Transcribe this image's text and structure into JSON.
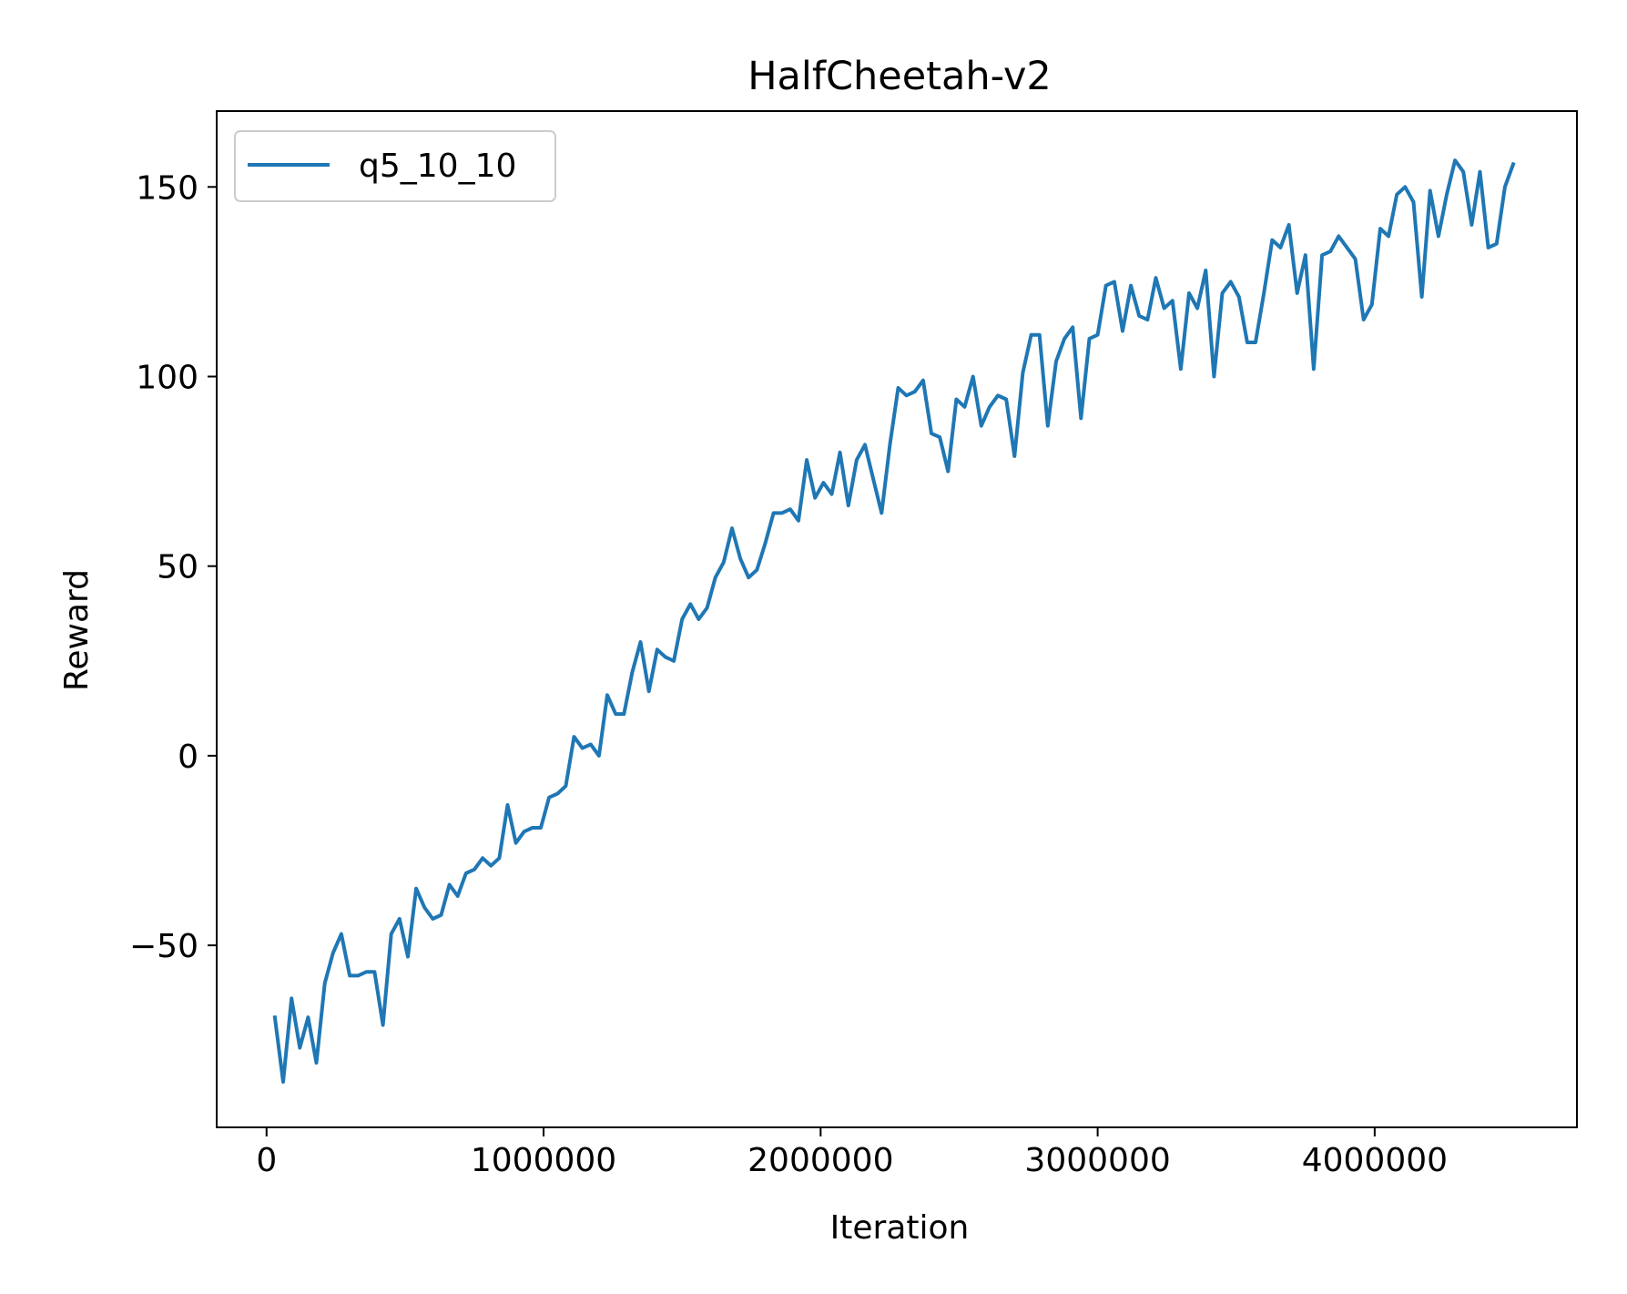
{
  "chart_data": {
    "type": "line",
    "title": "HalfCheetah-v2",
    "xlabel": "Iteration",
    "ylabel": "Reward",
    "xlim": [
      -180000,
      4730000
    ],
    "ylim": [
      -98,
      170
    ],
    "xticks": [
      0,
      1000000,
      2000000,
      3000000,
      4000000
    ],
    "xtick_labels": [
      "0",
      "1000000",
      "2000000",
      "3000000",
      "4000000"
    ],
    "yticks": [
      -50,
      0,
      50,
      100,
      150
    ],
    "ytick_labels": [
      "−50",
      "0",
      "50",
      "100",
      "150"
    ],
    "grid": false,
    "legend_position": "top-left",
    "series": [
      {
        "name": "q5_10_10",
        "color": "#1f77b4",
        "x": [
          30000,
          60000,
          90000,
          120000,
          150000,
          180000,
          210000,
          240000,
          270000,
          300000,
          330000,
          360000,
          390000,
          420000,
          450000,
          480000,
          510000,
          540000,
          570000,
          600000,
          630000,
          660000,
          690000,
          720000,
          750000,
          780000,
          810000,
          840000,
          870000,
          900000,
          930000,
          960000,
          990000,
          1020000,
          1050000,
          1080000,
          1110000,
          1140000,
          1170000,
          1200000,
          1230000,
          1260000,
          1290000,
          1320000,
          1350000,
          1380000,
          1410000,
          1440000,
          1470000,
          1500000,
          1530000,
          1560000,
          1590000,
          1620000,
          1650000,
          1680000,
          1710000,
          1740000,
          1770000,
          1800000,
          1830000,
          1860000,
          1890000,
          1920000,
          1950000,
          1980000,
          2010000,
          2040000,
          2070000,
          2100000,
          2130000,
          2160000,
          2190000,
          2220000,
          2250000,
          2280000,
          2310000,
          2340000,
          2370000,
          2400000,
          2430000,
          2460000,
          2490000,
          2520000,
          2550000,
          2580000,
          2610000,
          2640000,
          2670000,
          2700000,
          2730000,
          2760000,
          2790000,
          2820000,
          2850000,
          2880000,
          2910000,
          2940000,
          2970000,
          3000000,
          3030000,
          3060000,
          3090000,
          3120000,
          3150000,
          3180000,
          3210000,
          3240000,
          3270000,
          3300000,
          3330000,
          3360000,
          3390000,
          3420000,
          3450000,
          3480000,
          3510000,
          3540000,
          3570000,
          3600000,
          3630000,
          3660000,
          3690000,
          3720000,
          3750000,
          3780000,
          3810000,
          3840000,
          3870000,
          3900000,
          3930000,
          3960000,
          3990000,
          4020000,
          4050000,
          4080000,
          4110000,
          4140000,
          4170000,
          4200000,
          4230000,
          4260000,
          4290000,
          4320000,
          4350000,
          4380000,
          4410000,
          4440000,
          4470000,
          4500000
        ],
        "values": [
          -69,
          -86,
          -64,
          -77,
          -69,
          -81,
          -60,
          -52,
          -47,
          -58,
          -58,
          -57,
          -57,
          -71,
          -47,
          -43,
          -53,
          -35,
          -40,
          -43,
          -42,
          -34,
          -37,
          -31,
          -30,
          -27,
          -29,
          -27,
          -13,
          -23,
          -20,
          -19,
          -19,
          -11,
          -10,
          -8,
          5,
          2,
          3,
          0,
          16,
          11,
          11,
          22,
          30,
          17,
          28,
          26,
          25,
          36,
          40,
          36,
          39,
          47,
          51,
          60,
          52,
          47,
          49,
          56,
          64,
          64,
          65,
          62,
          78,
          68,
          72,
          69,
          80,
          66,
          78,
          82,
          73,
          64,
          82,
          97,
          95,
          96,
          99,
          85,
          84,
          75,
          94,
          92,
          100,
          87,
          92,
          95,
          94,
          79,
          101,
          111,
          111,
          87,
          104,
          110,
          113,
          89,
          110,
          111,
          124,
          125,
          112,
          124,
          116,
          115,
          126,
          118,
          120,
          102,
          122,
          118,
          128,
          100,
          122,
          125,
          121,
          109,
          109,
          122,
          136,
          134,
          140,
          122,
          132,
          102,
          132,
          133,
          137,
          134,
          131,
          115,
          119,
          139,
          137,
          148,
          150,
          146,
          121,
          149,
          137,
          148,
          157,
          154,
          140,
          154,
          134,
          135,
          150,
          156
        ]
      }
    ]
  }
}
